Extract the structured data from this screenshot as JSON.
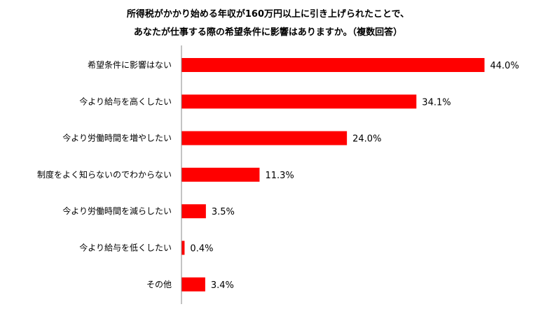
{
  "title_line1": "所得税がかかり始める年収が160万円以上に引き上げられたことで、",
  "title_line2": "あなたが仕事する際の希望条件に影響はありますか。（複数回答）",
  "chart_data": {
    "type": "bar",
    "orientation": "horizontal",
    "categories": [
      "希望条件に影響はない",
      "今より給与を高くしたい",
      "今より労働時間を増やしたい",
      "制度をよく知らないのでわからない",
      "今より労働時間を減らしたい",
      "今より給与を低くしたい",
      "その他"
    ],
    "values": [
      44.0,
      34.1,
      24.0,
      11.3,
      3.5,
      0.4,
      3.4
    ],
    "value_labels": [
      "44.0%",
      "34.1%",
      "24.0%",
      "11.3%",
      "3.5%",
      "0.4%",
      "3.4%"
    ],
    "unit": "%",
    "xlim": [
      0,
      44
    ],
    "bar_color": "#ff0000",
    "grid": false,
    "legend": "none"
  }
}
